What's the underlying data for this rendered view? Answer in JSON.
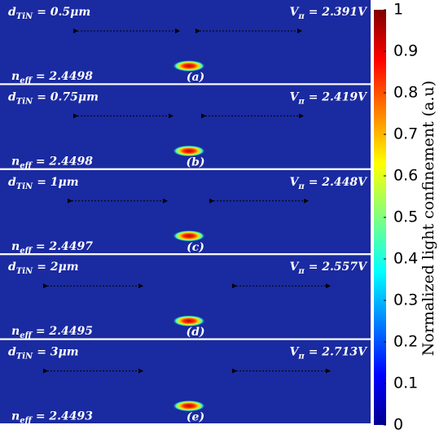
{
  "panels": [
    {
      "d_value": "= 0.5μm",
      "v_value": "= 2.391V",
      "n_value": "= 2.4498",
      "tag": "(a)"
    },
    {
      "d_value": "= 0.75μm",
      "v_value": "= 2.419V",
      "n_value": "= 2.4498",
      "tag": "(b)"
    },
    {
      "d_value": "= 1μm",
      "v_value": "= 2.448V",
      "n_value": "= 2.4497",
      "tag": "(c)"
    },
    {
      "d_value": "= 2μm",
      "v_value": "= 2.557V",
      "n_value": "= 2.4495",
      "tag": "(d)"
    },
    {
      "d_value": "= 3μm",
      "v_value": "= 2.713V",
      "n_value": "= 2.4493",
      "tag": "(e)"
    }
  ],
  "symbols": {
    "d": "d",
    "d_sub": "TiN",
    "v": "V",
    "v_sub": "π",
    "n": "n",
    "n_sub": "eff"
  },
  "colorbar": {
    "label": "Normalized light confinement (a.u)",
    "lim": [
      0,
      1
    ],
    "ticks": [
      0,
      0.1,
      0.2,
      0.3,
      0.4,
      0.5,
      0.6,
      0.7,
      0.8,
      0.9,
      1
    ]
  }
}
